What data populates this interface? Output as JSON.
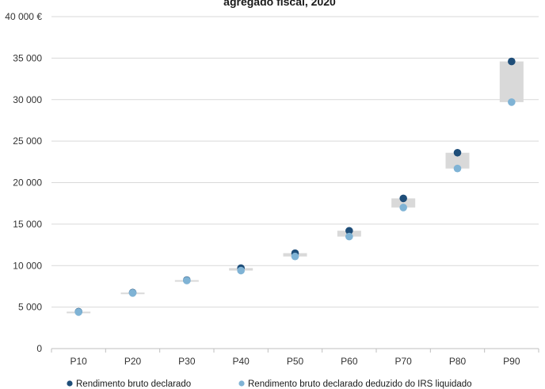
{
  "chart_data": {
    "type": "scatter",
    "title": "agregado fiscal, 2020",
    "categories": [
      "P10",
      "P20",
      "P30",
      "P40",
      "P50",
      "P60",
      "P70",
      "P80",
      "P90"
    ],
    "series": [
      {
        "name": "Rendimento bruto declarado",
        "color": "#1f4e79",
        "values": [
          4450,
          6750,
          8250,
          9700,
          11500,
          14200,
          18100,
          23600,
          34600
        ]
      },
      {
        "name": "Rendimento bruto declarado deduzido do IRS liquidado",
        "color": "#7fb3d5",
        "values": [
          4400,
          6700,
          8200,
          9400,
          11100,
          13500,
          17000,
          21700,
          29700
        ]
      }
    ],
    "band_color": "#d9d9d9",
    "ylim": [
      0,
      40000
    ],
    "yticks": [
      "0",
      "5 000",
      "10 000",
      "15 000",
      "20 000",
      "25 000",
      "30 000",
      "35 000",
      "40 000 €"
    ],
    "grid": true,
    "legend_position": "bottom"
  }
}
